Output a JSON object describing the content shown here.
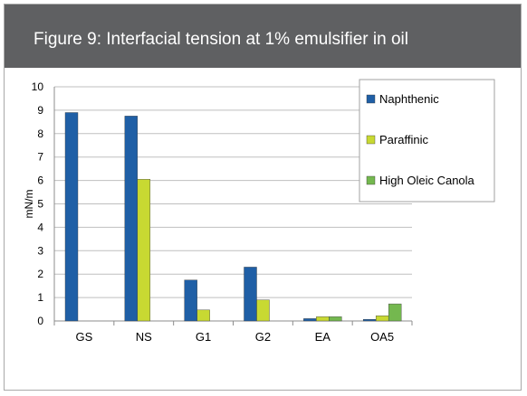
{
  "header": {
    "title": "Figure 9: Interfacial tension at 1% emulsifier in oil"
  },
  "chart_data": {
    "type": "bar",
    "title": "Figure 9: Interfacial tension at 1% emulsifier in oil",
    "xlabel": "",
    "ylabel": "mN/m",
    "ylim": [
      0,
      10
    ],
    "yticks": [
      "0",
      "1",
      "2",
      "3",
      "4",
      "5",
      "6",
      "7",
      "8",
      "9",
      "10"
    ],
    "grid": true,
    "legend_position": "top-right",
    "categories": [
      "GS",
      "NS",
      "G1",
      "G2",
      "EA",
      "OA5"
    ],
    "series": [
      {
        "name": "Naphthenic",
        "color": "#1f5fa6",
        "values": [
          8.9,
          8.75,
          1.75,
          2.3,
          0.1,
          0.07
        ]
      },
      {
        "name": "Paraffinic",
        "color": "#c8d932",
        "values": [
          null,
          6.05,
          0.47,
          0.9,
          0.18,
          0.22
        ]
      },
      {
        "name": "High Oleic Canola",
        "color": "#74b84f",
        "values": [
          null,
          null,
          null,
          null,
          0.18,
          0.73
        ]
      }
    ]
  }
}
